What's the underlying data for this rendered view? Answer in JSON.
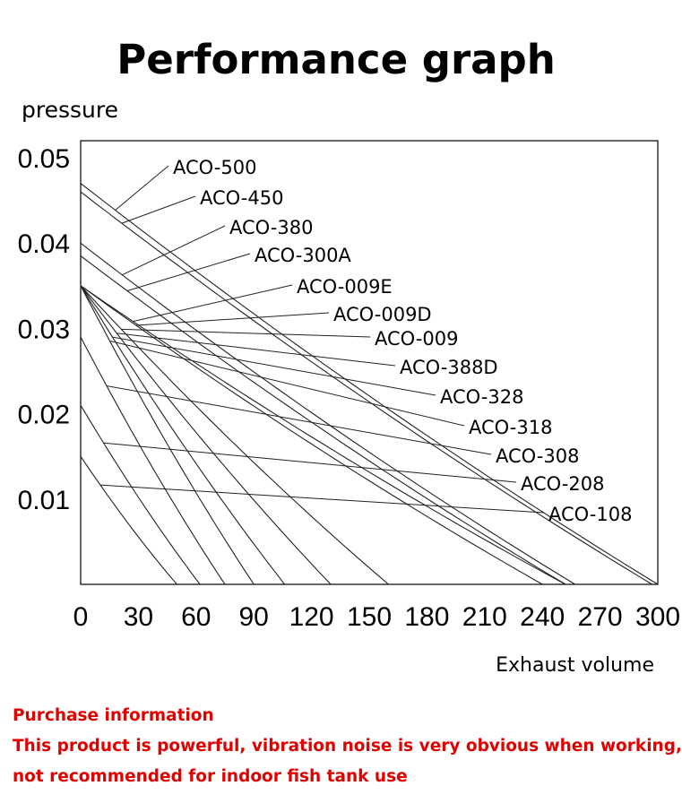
{
  "chart_data": {
    "type": "line",
    "title": "Performance graph",
    "ylabel": "pressure",
    "xlabel": "Exhaust volume",
    "xlim": [
      0,
      300
    ],
    "ylim": [
      0,
      0.052
    ],
    "x_ticks": [
      "0",
      "30",
      "60",
      "90",
      "120",
      "150",
      "180",
      "210",
      "240",
      "270",
      "300"
    ],
    "y_ticks": [
      "0.05",
      "0.04",
      "0.03",
      "0.02",
      "0.01"
    ],
    "series": [
      {
        "name": "ACO-500",
        "max_pressure": 0.047,
        "max_flow": 300
      },
      {
        "name": "ACO-450",
        "max_pressure": 0.046,
        "max_flow": 297
      },
      {
        "name": "ACO-380",
        "max_pressure": 0.04,
        "max_flow": 257
      },
      {
        "name": "ACO-300A",
        "max_pressure": 0.0385,
        "max_flow": 252
      },
      {
        "name": "ACO-009E",
        "max_pressure": 0.035,
        "max_flow": 252
      },
      {
        "name": "ACO-009D",
        "max_pressure": 0.035,
        "max_flow": 240
      },
      {
        "name": "ACO-009",
        "max_pressure": 0.035,
        "max_flow": 160
      },
      {
        "name": "ACO-388D",
        "max_pressure": 0.035,
        "max_flow": 130
      },
      {
        "name": "ACO-328",
        "max_pressure": 0.035,
        "max_flow": 106
      },
      {
        "name": "ACO-318",
        "max_pressure": 0.035,
        "max_flow": 90
      },
      {
        "name": "ACO-308",
        "max_pressure": 0.029,
        "max_flow": 75
      },
      {
        "name": "ACO-208",
        "max_pressure": 0.021,
        "max_flow": 62
      },
      {
        "name": "ACO-108",
        "max_pressure": 0.015,
        "max_flow": 50
      }
    ]
  },
  "notes": {
    "heading": "Purchase information",
    "line1": "This product is powerful, vibration noise is very obvious when working,",
    "line2": "not recommended for indoor fish tank use"
  }
}
